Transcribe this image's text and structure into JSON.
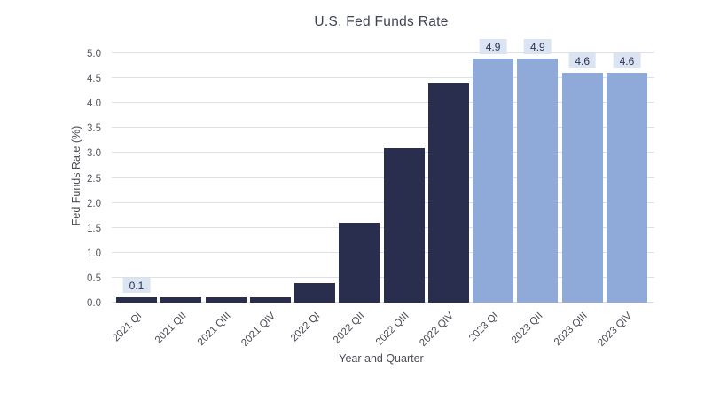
{
  "chart_data": {
    "type": "bar",
    "title": "U.S. Fed Funds Rate",
    "xlabel": "Year and Quarter",
    "ylabel": "Fed Funds Rate (%)",
    "ylim": [
      0,
      5.0
    ],
    "yticks": [
      "0.0",
      "0.5",
      "1.0",
      "1.5",
      "2.0",
      "2.5",
      "3.0",
      "3.5",
      "4.0",
      "4.5",
      "5.0"
    ],
    "categories": [
      "2021 QI",
      "2021 QII",
      "2021 QIII",
      "2021 QIV",
      "2022 QI",
      "2022 QII",
      "2022 QIII",
      "2022 QIV",
      "2023 QI",
      "2023 QII",
      "2023 QIII",
      "2023 QIV"
    ],
    "values": [
      0.1,
      0.1,
      0.1,
      0.1,
      0.4,
      1.6,
      3.1,
      4.4,
      4.9,
      4.9,
      4.6,
      4.6
    ],
    "data_labels": [
      "0.1",
      null,
      null,
      null,
      null,
      null,
      null,
      null,
      "4.9",
      "4.9",
      "4.6",
      "4.6"
    ],
    "bar_color_groups": [
      "dark",
      "dark",
      "dark",
      "dark",
      "dark",
      "dark",
      "dark",
      "dark",
      "light",
      "light",
      "light",
      "light"
    ],
    "colors": {
      "dark": "#2a2e4e",
      "light": "#8fa9d8",
      "label_bg": "#dbe4f2",
      "label_text": "#2e3252",
      "grid": "#dcdfe4",
      "tick_text": "#55575f",
      "title_text": "#3e4254"
    },
    "grid": true,
    "legend": false
  }
}
